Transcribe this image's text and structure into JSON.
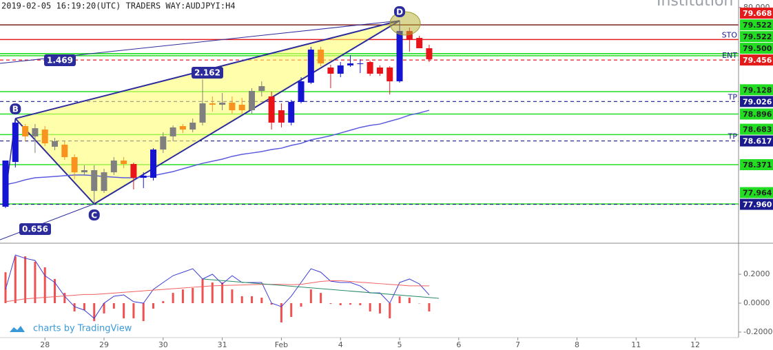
{
  "chart_data": [
    {
      "type": "candlestick",
      "title": "2019-02-05 16:19:20(UTC) TRADERS WAY:AUDJPYI:H4",
      "watermark": "Institution",
      "credit": "charts by TradingView",
      "xlim": [
        -0.56,
        74.4
      ],
      "xticks": [
        {
          "value": 4,
          "label": "28"
        },
        {
          "value": 10,
          "label": "29"
        },
        {
          "value": 16,
          "label": "30"
        },
        {
          "value": 22,
          "label": "31"
        },
        {
          "value": 28,
          "label": "Feb"
        },
        {
          "value": 34,
          "label": "4"
        },
        {
          "value": 40,
          "label": "5"
        },
        {
          "value": 46,
          "label": "6"
        },
        {
          "value": 52,
          "label": "7"
        },
        {
          "value": 58,
          "label": "8"
        },
        {
          "value": 64,
          "label": "11"
        },
        {
          "value": 70,
          "label": "12"
        }
      ],
      "ylim": [
        77.564,
        80.078
      ],
      "yticks": [
        {
          "value": 80,
          "label": "80.000"
        }
      ],
      "open": [
        77.935,
        78.399,
        78.771,
        78.664,
        78.735,
        78.557,
        78.578,
        78.449,
        78.292,
        78.314,
        78.099,
        78.292,
        78.414,
        78.378,
        78.235,
        78.235,
        78.528,
        78.664,
        78.771,
        78.735,
        78.807,
        79.007,
        78.992,
        79.014,
        78.992,
        78.935,
        79.135,
        79.078,
        78.935,
        78.807,
        79.021,
        79.221,
        79.564,
        79.378,
        79.314,
        79.4,
        79.414,
        79.435,
        79.378,
        79.378,
        79.235,
        79.757,
        79.685,
        79.578
      ],
      "high": [
        78.414,
        78.849,
        78.792,
        78.792,
        78.771,
        78.649,
        78.614,
        78.478,
        78.364,
        78.364,
        78.328,
        78.449,
        78.449,
        78.392,
        78.292,
        78.542,
        78.707,
        78.778,
        78.792,
        78.849,
        79.257,
        79.078,
        79.114,
        79.078,
        79.064,
        79.164,
        79.235,
        79.128,
        79.007,
        79.042,
        79.278,
        79.592,
        79.592,
        79.407,
        79.435,
        79.507,
        79.464,
        79.449,
        79.4,
        79.392,
        79.864,
        79.792,
        79.707,
        79.614
      ],
      "low": [
        77.921,
        78.342,
        78.614,
        78.492,
        78.564,
        78.521,
        78.421,
        78.221,
        78.257,
        77.964,
        78.078,
        78.264,
        78.335,
        78.114,
        78.128,
        78.207,
        78.492,
        78.614,
        78.699,
        78.707,
        78.778,
        78.921,
        78.935,
        78.899,
        78.899,
        78.899,
        79.078,
        78.735,
        78.757,
        78.778,
        79.007,
        79.207,
        79.392,
        79.164,
        79.278,
        79.385,
        79.321,
        79.292,
        79.292,
        79.099,
        79.221,
        79.542,
        79.578,
        79.435
      ],
      "close": [
        78.414,
        78.807,
        78.664,
        78.749,
        78.592,
        78.614,
        78.449,
        78.292,
        78.314,
        78.099,
        78.292,
        78.414,
        78.378,
        78.235,
        78.257,
        78.528,
        78.664,
        78.757,
        78.735,
        78.807,
        79.007,
        78.992,
        79.014,
        78.935,
        78.935,
        79.135,
        79.185,
        78.807,
        78.807,
        79.021,
        79.235,
        79.564,
        79.421,
        79.314,
        79.4,
        79.421,
        79.421,
        79.314,
        79.314,
        79.235,
        79.757,
        79.664,
        79.578,
        79.464
      ],
      "colors": [
        "#1414d2",
        "#1414d2",
        "#f7931e",
        "#808080",
        "#f7931e",
        "#808080",
        "#f7931e",
        "#f7931e",
        "#808080",
        "#808080",
        "#808080",
        "#808080",
        "#f7931e",
        "#e8141a",
        "#1414d2",
        "#1414d2",
        "#808080",
        "#808080",
        "#f7931e",
        "#808080",
        "#808080",
        "#f7931e",
        "#808080",
        "#f7931e",
        "#f7931e",
        "#808080",
        "#808080",
        "#e8141a",
        "#e8141a",
        "#1414d2",
        "#1414d2",
        "#1414d2",
        "#f7931e",
        "#e8141a",
        "#1414d2",
        "#1414d2",
        "#1414d2",
        "#e8141a",
        "#e8141a",
        "#e8141a",
        "#1414d2",
        "#e8141a",
        "#e8141a",
        "#e8141a"
      ],
      "ma": {
        "color": "#5a5ae0",
        "values": [
          78.164,
          78.185,
          78.214,
          78.235,
          78.242,
          78.249,
          78.257,
          78.264,
          78.264,
          78.257,
          78.249,
          78.242,
          78.235,
          78.235,
          78.242,
          78.257,
          78.278,
          78.299,
          78.328,
          78.357,
          78.385,
          78.407,
          78.428,
          78.457,
          78.478,
          78.492,
          78.507,
          78.528,
          78.542,
          78.571,
          78.592,
          78.628,
          78.649,
          78.671,
          78.699,
          78.728,
          78.757,
          78.778,
          78.792,
          78.821,
          78.849,
          78.885,
          78.907,
          78.935
        ]
      },
      "pattern": {
        "color": "#2b2b9b",
        "fill": "#ffff66",
        "points": [
          {
            "label": "B",
            "x": 1,
            "y": 78.849
          },
          {
            "label": "C",
            "x": 9,
            "y": 77.964
          },
          {
            "label": "D",
            "x": 40,
            "y": 79.864
          }
        ],
        "ratios": [
          1.469,
          2.162,
          0.656
        ]
      },
      "levels": [
        {
          "value": 79.82,
          "color": "#7a1f1f"
        },
        {
          "value": 79.668,
          "value_label": "79.668",
          "color": "#e31b1b",
          "tag": "STO"
        },
        {
          "value": 79.522,
          "value_label": "79.522",
          "color": "#22dd22"
        },
        {
          "value": 79.522,
          "value_label": "79.522",
          "color": "#22dd22"
        },
        {
          "value": 79.5,
          "value_label": "79.500",
          "color": "#22dd22"
        },
        {
          "value": 79.456,
          "value_label": "79.456",
          "color": "#e31b1b",
          "dash": true,
          "tag": "ENT"
        },
        {
          "value": 79.128,
          "value_label": "79.128",
          "color": "#22dd22"
        },
        {
          "value": 79.026,
          "value_label": "79.026",
          "color": "#1a1a8c",
          "dash": true,
          "tag": "TP"
        },
        {
          "value": 78.896,
          "value_label": "78.896",
          "color": "#22dd22"
        },
        {
          "value": 78.683,
          "value_label": "78.683",
          "color": "#22dd22"
        },
        {
          "value": 78.617,
          "value_label": "78.617",
          "color": "#1a1a8c",
          "dash": true,
          "tag": "TP"
        },
        {
          "value": 78.371,
          "value_label": "78.371",
          "color": "#22dd22"
        },
        {
          "value": 77.964,
          "value_label": "77.964",
          "color": "#22dd22"
        },
        {
          "value": 77.96,
          "value_label": "77.960",
          "color": "#1a1a8c",
          "dash": true
        }
      ]
    },
    {
      "type": "bar",
      "color": "#f05050",
      "values": [
        0.214,
        0.324,
        0.324,
        0.286,
        0.248,
        0.167,
        0.071,
        -0.057,
        -0.048,
        -0.124,
        -0.071,
        -0.038,
        -0.105,
        -0.105,
        -0.124,
        -0.038,
        0.014,
        0.071,
        0.095,
        0.105,
        0.167,
        0.143,
        0.143,
        0.095,
        0.048,
        0.048,
        0.038,
        -0.01,
        -0.133,
        -0.095,
        -0.024,
        0.095,
        0.071,
        -0.005,
        -0.014,
        -0.01,
        -0.014,
        -0.057,
        -0.071,
        -0.105,
        0.048,
        0.038,
        -0.002,
        -0.057
      ],
      "lines": [
        {
          "color": "#3b3bd6",
          "values": [
            0.095,
            0.333,
            0.31,
            0.295,
            0.19,
            0.143,
            0.048,
            -0.024,
            -0.048,
            -0.105,
            0,
            0.048,
            0.057,
            0.01,
            0,
            0.095,
            0.143,
            0.19,
            0.214,
            0.238,
            0.167,
            0.2,
            0.133,
            0.19,
            0.143,
            0.143,
            0.143,
            0,
            -0.024,
            0.048,
            0.143,
            0.238,
            0.214,
            0.152,
            0.143,
            0.143,
            0.119,
            0.071,
            0.071,
            0,
            0.143,
            0.167,
            0.133,
            0.057
          ]
        },
        {
          "color": "#f06060",
          "values": [
            0.01,
            0.02,
            0.03,
            0.035,
            0.04,
            0.045,
            0.05,
            0.055,
            0.06,
            0.06,
            0.065,
            0.07,
            0.075,
            0.08,
            0.085,
            0.09,
            0.095,
            0.1,
            0.105,
            0.11,
            0.115,
            0.12,
            0.122,
            0.124,
            0.126,
            0.128,
            0.13,
            0.13,
            0.13,
            0.128,
            0.13,
            0.14,
            0.15,
            0.155,
            0.155,
            0.15,
            0.145,
            0.14,
            0.135,
            0.13,
            0.125,
            0.12,
            0.12,
            0.12
          ]
        }
      ],
      "ylim": [
        -0.238,
        0.405
      ],
      "yticks": [
        {
          "value": 0.2,
          "label": "0.2000"
        },
        {
          "value": 0,
          "label": "0.0000"
        },
        {
          "value": -0.2,
          "label": "-0.2000"
        }
      ]
    }
  ]
}
